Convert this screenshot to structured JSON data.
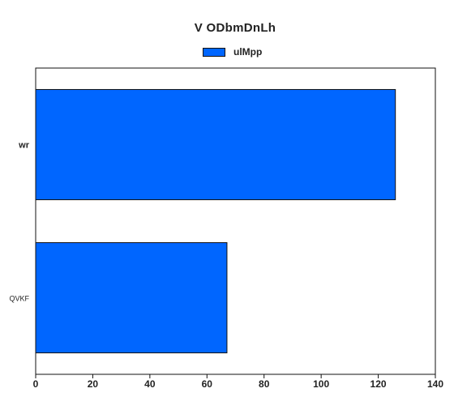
{
  "chart_data": {
    "type": "bar",
    "orientation": "horizontal",
    "title": "V  ODbmDnLh",
    "xlabel": "",
    "ylabel": "",
    "categories": [
      "wr",
      "QVKF"
    ],
    "series": [
      {
        "name": "ulMpp",
        "values": [
          126,
          67
        ],
        "color": "#0066ff"
      }
    ],
    "xlim": [
      0,
      140
    ],
    "xticks": [
      "0",
      "20",
      "40",
      "60",
      "80",
      "100",
      "120",
      "140"
    ],
    "grid": false,
    "legend_position": "top-center"
  }
}
